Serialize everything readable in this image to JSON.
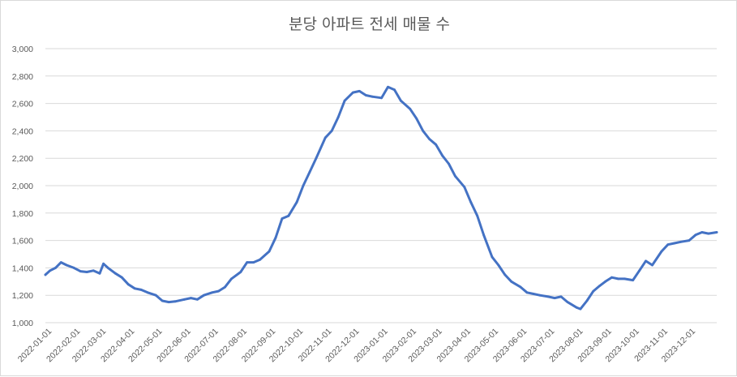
{
  "chart_data": {
    "type": "line",
    "title": "분당 아파트 전세 매물 수",
    "xlabel": "",
    "ylabel": "",
    "ylim": [
      1000,
      3000
    ],
    "yticks": [
      "1,000",
      "1,200",
      "1,400",
      "1,600",
      "1,800",
      "2,000",
      "2,200",
      "2,400",
      "2,600",
      "2,800",
      "3,000"
    ],
    "xticks": [
      "2022-01-01",
      "2022-02-01",
      "2022-03-01",
      "2022-04-01",
      "2022-05-01",
      "2022-06-01",
      "2022-07-01",
      "2022-08-01",
      "2022-09-01",
      "2022-10-01",
      "2022-11-01",
      "2022-12-01",
      "2023-01-01",
      "2023-02-01",
      "2023-03-01",
      "2023-04-01",
      "2023-05-01",
      "2023-06-01",
      "2023-07-01",
      "2023-08-01",
      "2023-09-01",
      "2023-10-01",
      "2023-11-01",
      "2023-12-01"
    ],
    "grid": true,
    "legend": "none",
    "series": [
      {
        "color": "#4472c4",
        "x": [
          "2022-01-01",
          "2022-01-06",
          "2022-01-12",
          "2022-01-18",
          "2022-01-24",
          "2022-02-01",
          "2022-02-08",
          "2022-02-15",
          "2022-02-22",
          "2022-03-01",
          "2022-03-05",
          "2022-03-10",
          "2022-03-18",
          "2022-03-25",
          "2022-04-01",
          "2022-04-08",
          "2022-04-15",
          "2022-04-22",
          "2022-05-01",
          "2022-05-08",
          "2022-05-15",
          "2022-05-22",
          "2022-06-01",
          "2022-06-08",
          "2022-06-15",
          "2022-06-22",
          "2022-07-01",
          "2022-07-08",
          "2022-07-15",
          "2022-07-22",
          "2022-08-01",
          "2022-08-08",
          "2022-08-15",
          "2022-08-22",
          "2022-09-01",
          "2022-09-08",
          "2022-09-15",
          "2022-09-22",
          "2022-10-01",
          "2022-10-08",
          "2022-10-15",
          "2022-10-22",
          "2022-11-01",
          "2022-11-08",
          "2022-11-15",
          "2022-11-22",
          "2022-12-01",
          "2022-12-08",
          "2022-12-15",
          "2022-12-22",
          "2023-01-01",
          "2023-01-08",
          "2023-01-15",
          "2023-01-22",
          "2023-02-01",
          "2023-02-08",
          "2023-02-15",
          "2023-02-22",
          "2023-03-01",
          "2023-03-08",
          "2023-03-15",
          "2023-03-22",
          "2023-04-01",
          "2023-04-08",
          "2023-04-15",
          "2023-04-22",
          "2023-05-01",
          "2023-05-08",
          "2023-05-15",
          "2023-05-22",
          "2023-06-01",
          "2023-06-08",
          "2023-06-15",
          "2023-06-22",
          "2023-07-01",
          "2023-07-08",
          "2023-07-15",
          "2023-07-22",
          "2023-08-01",
          "2023-08-05",
          "2023-08-12",
          "2023-08-19",
          "2023-08-26",
          "2023-09-01",
          "2023-09-08",
          "2023-09-15",
          "2023-09-22",
          "2023-10-01",
          "2023-10-08",
          "2023-10-15",
          "2023-10-22",
          "2023-11-01",
          "2023-11-08",
          "2023-11-15",
          "2023-11-22",
          "2023-12-01",
          "2023-12-08",
          "2023-12-15",
          "2023-12-22",
          "2023-12-31"
        ],
        "values": [
          1350,
          1380,
          1400,
          1440,
          1420,
          1400,
          1375,
          1370,
          1380,
          1360,
          1430,
          1400,
          1360,
          1330,
          1280,
          1250,
          1240,
          1220,
          1200,
          1160,
          1150,
          1155,
          1170,
          1180,
          1170,
          1200,
          1220,
          1230,
          1260,
          1320,
          1370,
          1440,
          1440,
          1460,
          1520,
          1620,
          1760,
          1780,
          1880,
          2000,
          2100,
          2200,
          2350,
          2400,
          2500,
          2620,
          2680,
          2690,
          2660,
          2650,
          2640,
          2720,
          2700,
          2620,
          2560,
          2490,
          2400,
          2340,
          2300,
          2220,
          2160,
          2070,
          1990,
          1880,
          1780,
          1640,
          1480,
          1420,
          1350,
          1300,
          1260,
          1220,
          1210,
          1200,
          1190,
          1180,
          1190,
          1150,
          1110,
          1100,
          1160,
          1230,
          1270,
          1300,
          1330,
          1320,
          1320,
          1310,
          1380,
          1450,
          1420,
          1520,
          1570,
          1580,
          1590,
          1600,
          1640,
          1660,
          1650,
          1660
        ]
      }
    ]
  }
}
